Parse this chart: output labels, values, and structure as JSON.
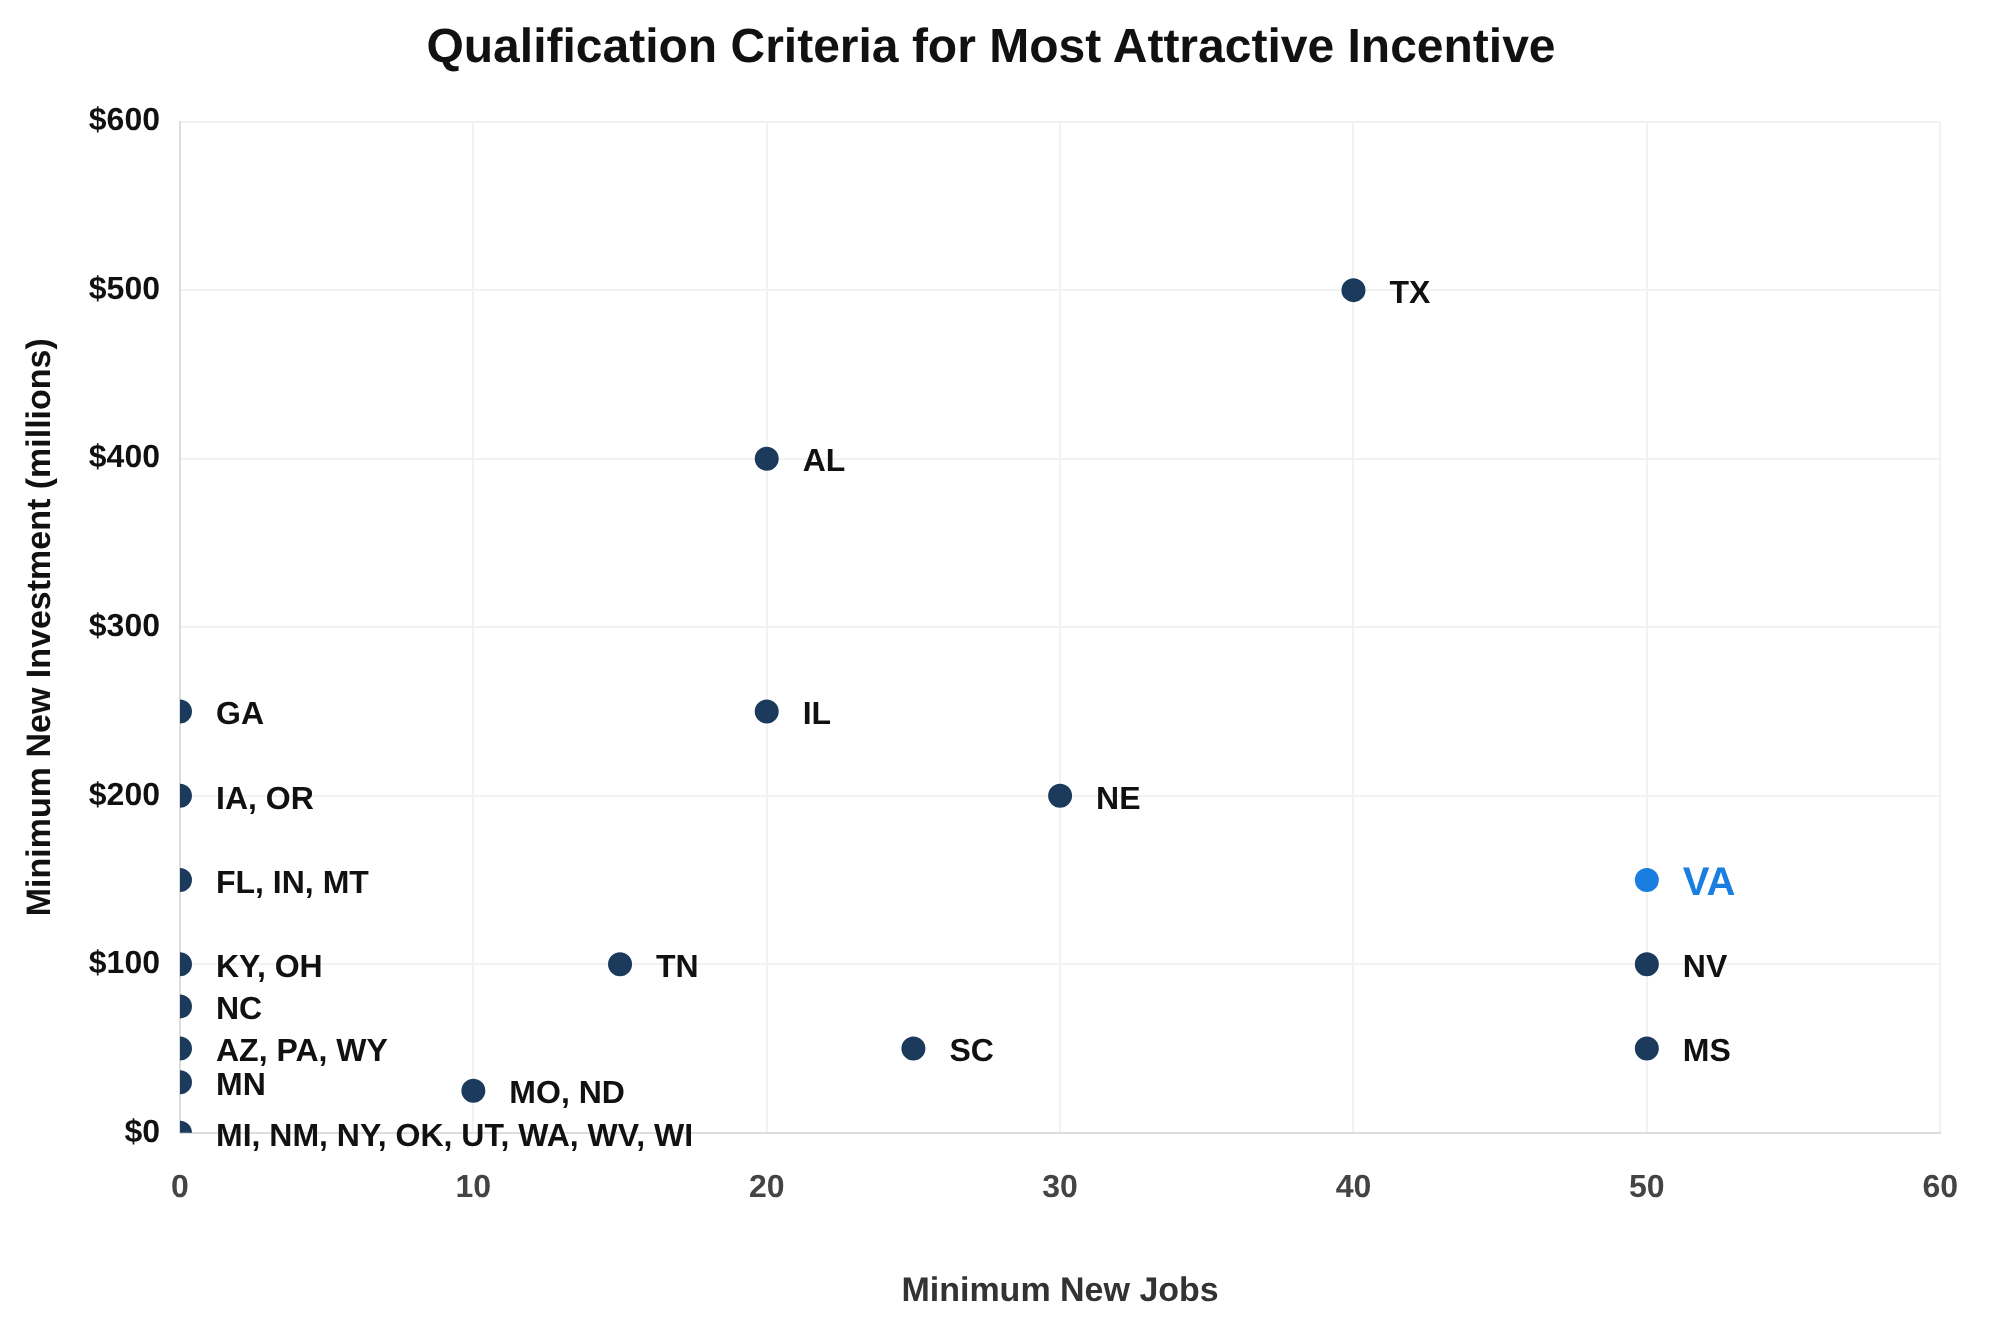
{
  "chart_data": {
    "type": "scatter",
    "title": "Qualification Criteria for Most Attractive Incentive",
    "xlabel": "Minimum New Jobs",
    "ylabel": "Minimum New Investment (millions)",
    "x": [
      0,
      0,
      0,
      0,
      0,
      0,
      0,
      0,
      10,
      15,
      20,
      20,
      25,
      30,
      40,
      50,
      50,
      50
    ],
    "values": [
      250,
      200,
      150,
      100,
      75,
      50,
      30,
      0,
      25,
      100,
      250,
      400,
      50,
      200,
      500,
      150,
      100,
      50
    ],
    "colors": [
      "#1b3a5c",
      "#1b3a5c",
      "#1b3a5c",
      "#1b3a5c",
      "#1b3a5c",
      "#1b3a5c",
      "#1b3a5c",
      "#1b3a5c",
      "#1b3a5c",
      "#1b3a5c",
      "#1b3a5c",
      "#1b3a5c",
      "#1b3a5c",
      "#1b3a5c",
      "#1b3a5c",
      "#1a7ee0",
      "#1b3a5c",
      "#1b3a5c"
    ],
    "marker": "circle",
    "xlim": [
      0,
      60
    ],
    "xticks": [
      0,
      10,
      20,
      30,
      40,
      50,
      60
    ],
    "ylim": [
      0,
      600
    ],
    "yticks": [
      {
        "value": 0,
        "label": "$0"
      },
      {
        "value": 100,
        "label": "$100"
      },
      {
        "value": 200,
        "label": "$200"
      },
      {
        "value": 300,
        "label": "$300"
      },
      {
        "value": 400,
        "label": "$400"
      },
      {
        "value": 500,
        "label": "$500"
      },
      {
        "value": 600,
        "label": "$600"
      }
    ],
    "grid": true,
    "annotations": [
      {
        "text": "GA",
        "x": 0,
        "y": 250
      },
      {
        "text": "IA, OR",
        "x": 0,
        "y": 200
      },
      {
        "text": "FL, IN, MT",
        "x": 0,
        "y": 150
      },
      {
        "text": "KY, OH",
        "x": 0,
        "y": 100
      },
      {
        "text": "NC",
        "x": 0,
        "y": 75
      },
      {
        "text": "AZ, PA, WY",
        "x": 0,
        "y": 50
      },
      {
        "text": "MN",
        "x": 0,
        "y": 30
      },
      {
        "text": "MI, NM, NY, OK, UT, WA, WV, WI",
        "x": 0,
        "y": 0
      },
      {
        "text": "MO, ND",
        "x": 10,
        "y": 25
      },
      {
        "text": "TN",
        "x": 15,
        "y": 100
      },
      {
        "text": "IL",
        "x": 20,
        "y": 250
      },
      {
        "text": "AL",
        "x": 20,
        "y": 400
      },
      {
        "text": "SC",
        "x": 25,
        "y": 50
      },
      {
        "text": "NE",
        "x": 30,
        "y": 200
      },
      {
        "text": "TX",
        "x": 40,
        "y": 500
      },
      {
        "text": "VA",
        "x": 50,
        "y": 150
      },
      {
        "text": "NV",
        "x": 50,
        "y": 100
      },
      {
        "text": "MS",
        "x": 50,
        "y": 50
      }
    ]
  }
}
